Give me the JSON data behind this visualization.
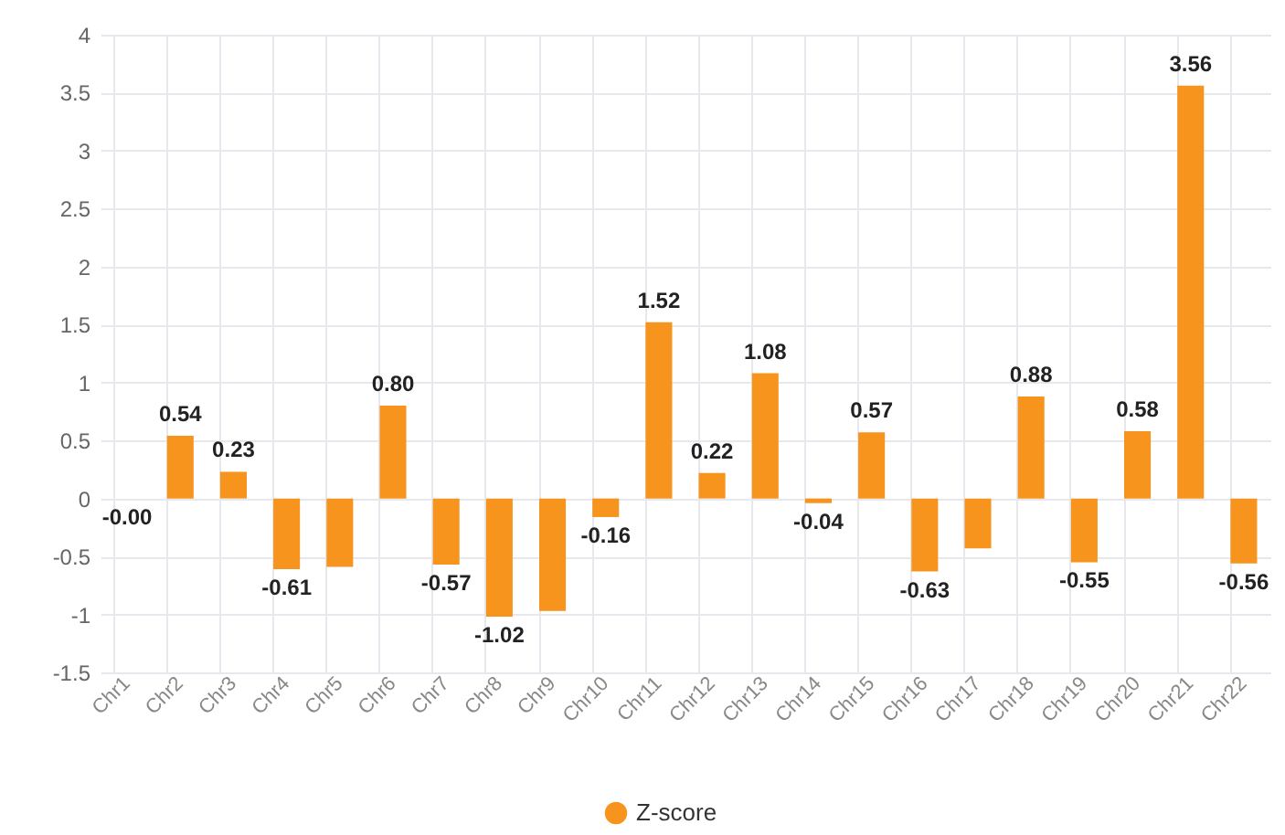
{
  "chart_data": {
    "type": "bar",
    "categories": [
      "Chr1",
      "Chr2",
      "Chr3",
      "Chr4",
      "Chr5",
      "Chr6",
      "Chr7",
      "Chr8",
      "Chr9",
      "Chr10",
      "Chr11",
      "Chr12",
      "Chr13",
      "Chr14",
      "Chr15",
      "Chr16",
      "Chr17",
      "Chr18",
      "Chr19",
      "Chr20",
      "Chr21",
      "Chr22"
    ],
    "series": [
      {
        "name": "Z-score",
        "color": "#f7941d",
        "values": [
          0,
          0.54,
          0.23,
          -0.61,
          -0.59,
          0.8,
          -0.57,
          -1.02,
          -0.97,
          -0.16,
          1.52,
          0.22,
          1.08,
          -0.04,
          0.57,
          -0.63,
          -0.43,
          0.88,
          -0.55,
          0.58,
          3.56,
          -0.56
        ],
        "value_labels": [
          "-0.00",
          "0.54",
          "0.23",
          "-0.61",
          null,
          "0.80",
          "-0.57",
          "-1.02",
          null,
          "-0.16",
          "1.52",
          "0.22",
          "1.08",
          "-0.04",
          "0.57",
          "-0.63",
          null,
          "0.88",
          "-0.55",
          "0.58",
          "3.56",
          "-0.56"
        ]
      }
    ],
    "ylim": [
      -1.5,
      4
    ],
    "yticks": [
      -1.5,
      -1,
      -0.5,
      0,
      0.5,
      1,
      1.5,
      2,
      2.5,
      3,
      3.5,
      4
    ],
    "grid": true,
    "legend": "bottom"
  }
}
